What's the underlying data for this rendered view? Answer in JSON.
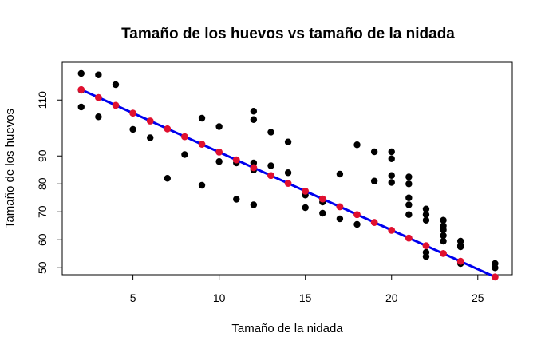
{
  "chart_data": {
    "type": "scatter",
    "title": "Tamaño de los huevos vs tamaño de la nidada",
    "xlabel": "Tamaño de la nidada",
    "ylabel": "Tamaño de los huevos",
    "xlim": [
      0.9,
      27.0
    ],
    "ylim": [
      47.5,
      123.5
    ],
    "x_ticks": [
      5,
      10,
      15,
      20,
      25
    ],
    "y_ticks": [
      50,
      60,
      70,
      80,
      90,
      110
    ],
    "grid": false,
    "series": [
      {
        "kind": "points",
        "color": "#000000",
        "x": [
          2,
          2,
          2,
          3,
          3,
          4,
          5,
          6,
          7,
          8,
          9,
          9,
          10,
          10,
          11,
          11,
          12,
          12,
          12,
          12,
          12,
          13,
          13,
          14,
          14,
          15,
          15,
          16,
          16,
          17,
          17,
          18,
          18,
          19,
          19,
          20,
          20,
          20,
          20,
          21,
          21,
          21,
          21,
          21,
          22,
          22,
          22,
          22,
          22,
          23,
          23,
          23,
          23,
          23,
          24,
          24,
          24,
          24,
          26,
          26
        ],
        "y": [
          119.5,
          107.5,
          113.5,
          119,
          104,
          115.5,
          99.5,
          96.5,
          82,
          90.5,
          103.5,
          79.5,
          100.5,
          88,
          87.5,
          74.5,
          106,
          103,
          85,
          87.5,
          72.5,
          98.5,
          86.5,
          95,
          84,
          76,
          71.5,
          73.5,
          69.5,
          83.5,
          67.5,
          94,
          65.5,
          91.5,
          81,
          91.5,
          89,
          83,
          80.5,
          82.5,
          80,
          75,
          72.5,
          69,
          71,
          69,
          67,
          55.5,
          54,
          67,
          65,
          63.5,
          61.5,
          59.5,
          59.5,
          57.5,
          51.5,
          58,
          51.5,
          50
        ]
      },
      {
        "kind": "fitted-points",
        "color": "#e0102f",
        "x": [
          2,
          3,
          4,
          5,
          6,
          7,
          8,
          9,
          10,
          11,
          12,
          13,
          14,
          15,
          16,
          17,
          18,
          19,
          20,
          21,
          22,
          23,
          24,
          26
        ],
        "y": [
          113.7,
          110.9,
          108.1,
          105.3,
          102.5,
          99.7,
          96.9,
          94.2,
          91.4,
          88.6,
          85.8,
          83.0,
          80.2,
          77.4,
          74.6,
          71.8,
          69.0,
          66.2,
          63.4,
          60.6,
          57.9,
          55.1,
          52.3,
          46.7
        ]
      },
      {
        "kind": "regression-line",
        "color": "#0000ee",
        "x": [
          2,
          26
        ],
        "y": [
          113.7,
          46.7
        ]
      }
    ]
  }
}
